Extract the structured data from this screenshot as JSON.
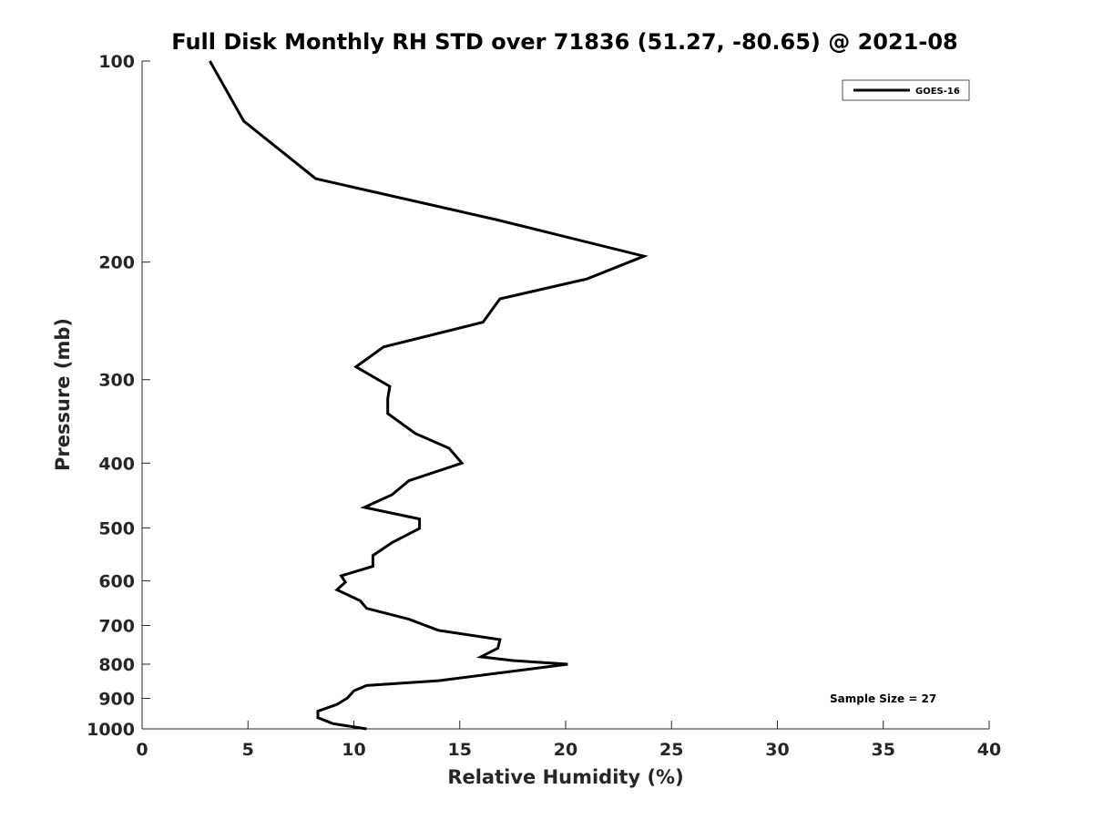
{
  "chart_data": {
    "type": "line",
    "title": "Full Disk Monthly RH STD over 71836 (51.27, -80.65) @ 2021-08",
    "xlabel": "Relative Humidity (%)",
    "ylabel": "Pressure (mb)",
    "xlim": [
      0,
      40
    ],
    "ylim": [
      100,
      1000
    ],
    "y_scale": "log",
    "y_reversed": true,
    "grid": false,
    "legend_position": "top-right",
    "x_ticks": [
      "0",
      "5",
      "10",
      "15",
      "20",
      "25",
      "30",
      "35",
      "40"
    ],
    "y_ticks": [
      "100",
      "200",
      "300",
      "400",
      "500",
      "600",
      "700",
      "800",
      "900",
      "1000"
    ],
    "annotation": "Sample Size = 27",
    "series": [
      {
        "name": "GOES-16",
        "color": "#000000",
        "x": [
          3.2,
          4.8,
          8.2,
          16.8,
          23.7,
          21.0,
          16.9,
          16.1,
          11.4,
          10.1,
          11.7,
          11.6,
          11.6,
          12.9,
          14.5,
          15.1,
          12.6,
          11.8,
          10.5,
          13.1,
          13.1,
          11.8,
          10.9,
          10.9,
          9.4,
          9.6,
          9.2,
          10.3,
          10.6,
          12.6,
          14.0,
          16.9,
          16.8,
          16.0,
          17.5,
          20.1,
          14.0,
          10.6,
          10.0,
          9.7,
          9.2,
          8.3,
          8.3,
          9.0,
          10.6
        ],
        "y": [
          100,
          123,
          150,
          173,
          196,
          212,
          227,
          246,
          268,
          287,
          307,
          320,
          337,
          361,
          380,
          400,
          425,
          446,
          466,
          485,
          501,
          526,
          550,
          571,
          590,
          603,
          619,
          643,
          660,
          685,
          712,
          735,
          757,
          780,
          790,
          800,
          847,
          861,
          877,
          899,
          919,
          941,
          962,
          982,
          1000
        ]
      }
    ]
  }
}
